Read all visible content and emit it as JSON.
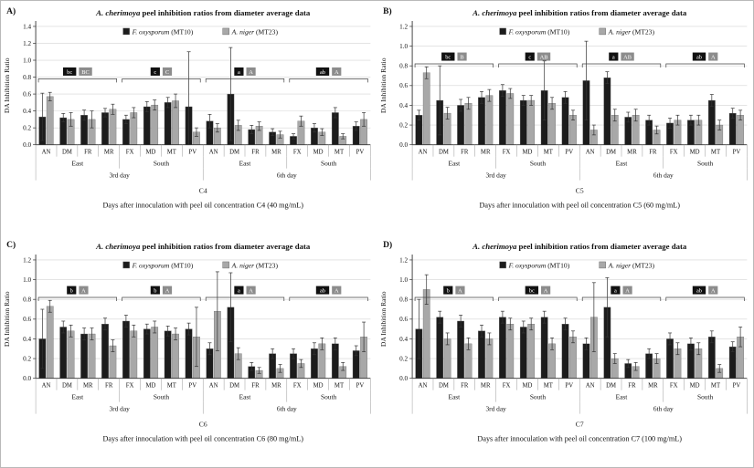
{
  "chart_data": [
    {
      "type": "bar",
      "panel_label": "A)",
      "title_species": "A. cherimoya",
      "title_rest": " peel inhibition ratios from diameter average data",
      "ylabel": "DA Inhibition Ratio",
      "xlabel": "Days after innoculation with peel oil concentration C4 (40 mg/mL)",
      "concentration_label": "C4",
      "ylim": [
        0,
        1.4
      ],
      "ytick_step": 0.2,
      "grid": true,
      "legend_position": "top-inside",
      "categories": [
        "AN",
        "DM",
        "FR",
        "MR",
        "FX",
        "MD",
        "MT",
        "PV",
        "AN",
        "DM",
        "FR",
        "MR",
        "FX",
        "MD",
        "MT",
        "PV"
      ],
      "region_labels": [
        "East",
        "South",
        "East",
        "South"
      ],
      "day_labels": [
        "3rd day",
        "6th day"
      ],
      "series": [
        {
          "name_italic": "F. oxysporum",
          "name_suffix": " (MT10)",
          "color": "#1c1c1c",
          "values": [
            0.33,
            0.32,
            0.35,
            0.38,
            0.3,
            0.45,
            0.5,
            0.45,
            0.28,
            0.6,
            0.18,
            0.15,
            0.1,
            0.2,
            0.38,
            0.22
          ],
          "errors": [
            0.28,
            0.05,
            0.06,
            0.05,
            0.05,
            0.06,
            0.06,
            0.65,
            0.08,
            0.55,
            0.05,
            0.04,
            0.03,
            0.05,
            0.06,
            0.05
          ]
        },
        {
          "name_italic": "A. niger",
          "name_suffix": " (MT23)",
          "color": "#a8a8a8",
          "values": [
            0.57,
            0.3,
            0.3,
            0.42,
            0.38,
            0.47,
            0.52,
            0.15,
            0.2,
            0.23,
            0.22,
            0.12,
            0.28,
            0.15,
            0.1,
            0.3
          ],
          "errors": [
            0.05,
            0.08,
            0.1,
            0.06,
            0.06,
            0.06,
            0.08,
            0.05,
            0.05,
            0.06,
            0.05,
            0.04,
            0.06,
            0.04,
            0.03,
            0.08
          ]
        }
      ],
      "significance": [
        {
          "black": "bc",
          "gray": "BC"
        },
        {
          "black": "c",
          "gray": "C"
        },
        {
          "black": "a",
          "gray": "A"
        },
        {
          "black": "ab",
          "gray": "A"
        }
      ],
      "bracket_y": 0.78
    },
    {
      "type": "bar",
      "panel_label": "B)",
      "title_species": "A. cherimoya",
      "title_rest": " peel inhibition ratios from diameter average data",
      "ylabel": "DA Inhibition Ratio",
      "xlabel": "Days after innoculation with peel oil concentration C5 (60 mg/mL)",
      "concentration_label": "C5",
      "ylim": [
        0,
        1.2
      ],
      "ytick_step": 0.2,
      "grid": true,
      "legend_position": "top-inside",
      "categories": [
        "AN",
        "DM",
        "FR",
        "MR",
        "FX",
        "MD",
        "MT",
        "PV",
        "AN",
        "DM",
        "MR",
        "FR",
        "FX",
        "MD",
        "MT",
        "PV"
      ],
      "region_labels": [
        "East",
        "South",
        "East",
        "South"
      ],
      "day_labels": [
        "3rd day",
        "6th day"
      ],
      "series": [
        {
          "name_italic": "F. oxysporum",
          "name_suffix": " (MT10)",
          "color": "#1c1c1c",
          "values": [
            0.3,
            0.45,
            0.4,
            0.48,
            0.55,
            0.45,
            0.55,
            0.48,
            0.65,
            0.68,
            0.28,
            0.25,
            0.22,
            0.25,
            0.45,
            0.32
          ],
          "errors": [
            0.05,
            0.35,
            0.06,
            0.06,
            0.06,
            0.05,
            0.3,
            0.06,
            0.4,
            0.06,
            0.05,
            0.05,
            0.05,
            0.05,
            0.06,
            0.05
          ]
        },
        {
          "name_italic": "A. niger",
          "name_suffix": " (MT23)",
          "color": "#a8a8a8",
          "values": [
            0.73,
            0.32,
            0.42,
            0.5,
            0.52,
            0.45,
            0.42,
            0.3,
            0.15,
            0.3,
            0.3,
            0.15,
            0.25,
            0.25,
            0.2,
            0.3
          ],
          "errors": [
            0.06,
            0.06,
            0.06,
            0.06,
            0.05,
            0.05,
            0.06,
            0.05,
            0.05,
            0.06,
            0.06,
            0.04,
            0.05,
            0.05,
            0.05,
            0.05
          ]
        }
      ],
      "significance": [
        {
          "black": "bc",
          "gray": "B"
        },
        {
          "black": "c",
          "gray": "AB"
        },
        {
          "black": "a",
          "gray": "AB"
        },
        {
          "black": "ab",
          "gray": "A"
        }
      ],
      "bracket_y": 0.82
    },
    {
      "type": "bar",
      "panel_label": "C)",
      "title_species": "A. cherimoya",
      "title_rest": " peel inhibition ratios from diameter average data",
      "ylabel": "DA Inhibition Ratio",
      "xlabel": "Days after innoculation with peel oil concentration C6 (80 mg/mL)",
      "concentration_label": "C6",
      "ylim": [
        0,
        1.2
      ],
      "ytick_step": 0.2,
      "grid": true,
      "legend_position": "top-inside",
      "categories": [
        "AN",
        "DM",
        "MR",
        "FR",
        "FX",
        "MD",
        "MT",
        "PV",
        "AN",
        "DM",
        "FR",
        "MR",
        "FX",
        "MD",
        "MT",
        "PV"
      ],
      "region_labels": [
        "East",
        "South",
        "East",
        "South"
      ],
      "day_labels": [
        "3rd day",
        "6th day"
      ],
      "series": [
        {
          "name_italic": "F. oxysporum",
          "name_suffix": " (MT10)",
          "color": "#1c1c1c",
          "values": [
            0.4,
            0.52,
            0.45,
            0.55,
            0.58,
            0.5,
            0.48,
            0.5,
            0.3,
            0.72,
            0.12,
            0.25,
            0.25,
            0.3,
            0.35,
            0.28
          ],
          "errors": [
            0.3,
            0.06,
            0.06,
            0.06,
            0.06,
            0.05,
            0.05,
            0.06,
            0.06,
            0.35,
            0.04,
            0.05,
            0.05,
            0.06,
            0.06,
            0.05
          ]
        },
        {
          "name_italic": "A. niger",
          "name_suffix": " (MT23)",
          "color": "#a8a8a8",
          "values": [
            0.73,
            0.48,
            0.45,
            0.33,
            0.48,
            0.52,
            0.45,
            0.42,
            0.68,
            0.25,
            0.08,
            0.1,
            0.15,
            0.35,
            0.12,
            0.42
          ],
          "errors": [
            0.06,
            0.06,
            0.06,
            0.06,
            0.06,
            0.06,
            0.06,
            0.3,
            0.4,
            0.06,
            0.03,
            0.04,
            0.04,
            0.06,
            0.04,
            0.15
          ]
        }
      ],
      "significance": [
        {
          "black": "b",
          "gray": "A"
        },
        {
          "black": "b",
          "gray": "A"
        },
        {
          "black": "a",
          "gray": "A"
        },
        {
          "black": "ab",
          "gray": "A"
        }
      ],
      "bracket_y": 0.82
    },
    {
      "type": "bar",
      "panel_label": "D)",
      "title_species": "A. cherimoya",
      "title_rest": " peel inhibition ratios from diameter average data",
      "ylabel": "DA Inhibition Ratio",
      "xlabel": "Days after innoculation with peel oil concentration C7 (100 mg/mL)",
      "concentration_label": "C7",
      "ylim": [
        0,
        1.2
      ],
      "ytick_step": 0.2,
      "grid": true,
      "legend_position": "top-inside",
      "categories": [
        "AN",
        "DM",
        "FR",
        "MR",
        "FX",
        "MD",
        "MT",
        "PV",
        "AN",
        "DM",
        "FR",
        "MR",
        "FX",
        "MD",
        "MT",
        "PV"
      ],
      "region_labels": [
        "East",
        "South",
        "East",
        "South"
      ],
      "day_labels": [
        "3rd day",
        "6th day"
      ],
      "series": [
        {
          "name_italic": "F. oxysporum",
          "name_suffix": " (MT10)",
          "color": "#1c1c1c",
          "values": [
            0.5,
            0.62,
            0.58,
            0.48,
            0.62,
            0.52,
            0.62,
            0.55,
            0.35,
            0.72,
            0.15,
            0.25,
            0.4,
            0.35,
            0.42,
            0.32
          ],
          "errors": [
            0.3,
            0.06,
            0.06,
            0.06,
            0.06,
            0.06,
            0.06,
            0.06,
            0.06,
            0.3,
            0.04,
            0.05,
            0.06,
            0.06,
            0.06,
            0.05
          ]
        },
        {
          "name_italic": "A. niger",
          "name_suffix": " (MT23)",
          "color": "#a8a8a8",
          "values": [
            0.9,
            0.4,
            0.35,
            0.4,
            0.55,
            0.55,
            0.35,
            0.42,
            0.62,
            0.2,
            0.12,
            0.2,
            0.3,
            0.3,
            0.1,
            0.42
          ],
          "errors": [
            0.15,
            0.06,
            0.06,
            0.06,
            0.06,
            0.06,
            0.06,
            0.06,
            0.35,
            0.05,
            0.04,
            0.05,
            0.06,
            0.06,
            0.04,
            0.1
          ]
        }
      ],
      "significance": [
        {
          "black": "b",
          "gray": "A"
        },
        {
          "black": "bc",
          "gray": "A"
        },
        {
          "black": "a",
          "gray": "A"
        },
        {
          "black": "ab",
          "gray": "A"
        }
      ],
      "bracket_y": 0.82
    }
  ],
  "colors": {
    "black_series": "#1c1c1c",
    "gray_series": "#a8a8a8",
    "chip_black": "#111111",
    "chip_gray": "#8c8c8c",
    "gridline": "#d4d4d4"
  }
}
